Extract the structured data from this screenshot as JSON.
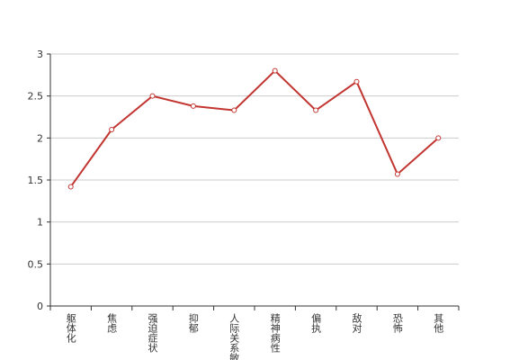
{
  "chart_data": {
    "type": "line",
    "categories": [
      "躯体化",
      "焦虑",
      "强迫症状",
      "抑郁",
      "人际关系敏感",
      "精神病性",
      "偏执",
      "敌对",
      "恐怖",
      "其他"
    ],
    "values": [
      1.42,
      2.1,
      2.5,
      2.38,
      2.33,
      2.8,
      2.33,
      2.67,
      1.57,
      2.0
    ],
    "color": "#c23531",
    "ylim": [
      0,
      3
    ],
    "yticks": [
      0,
      0.5,
      1,
      1.5,
      2,
      2.5,
      3
    ],
    "grid": true
  }
}
